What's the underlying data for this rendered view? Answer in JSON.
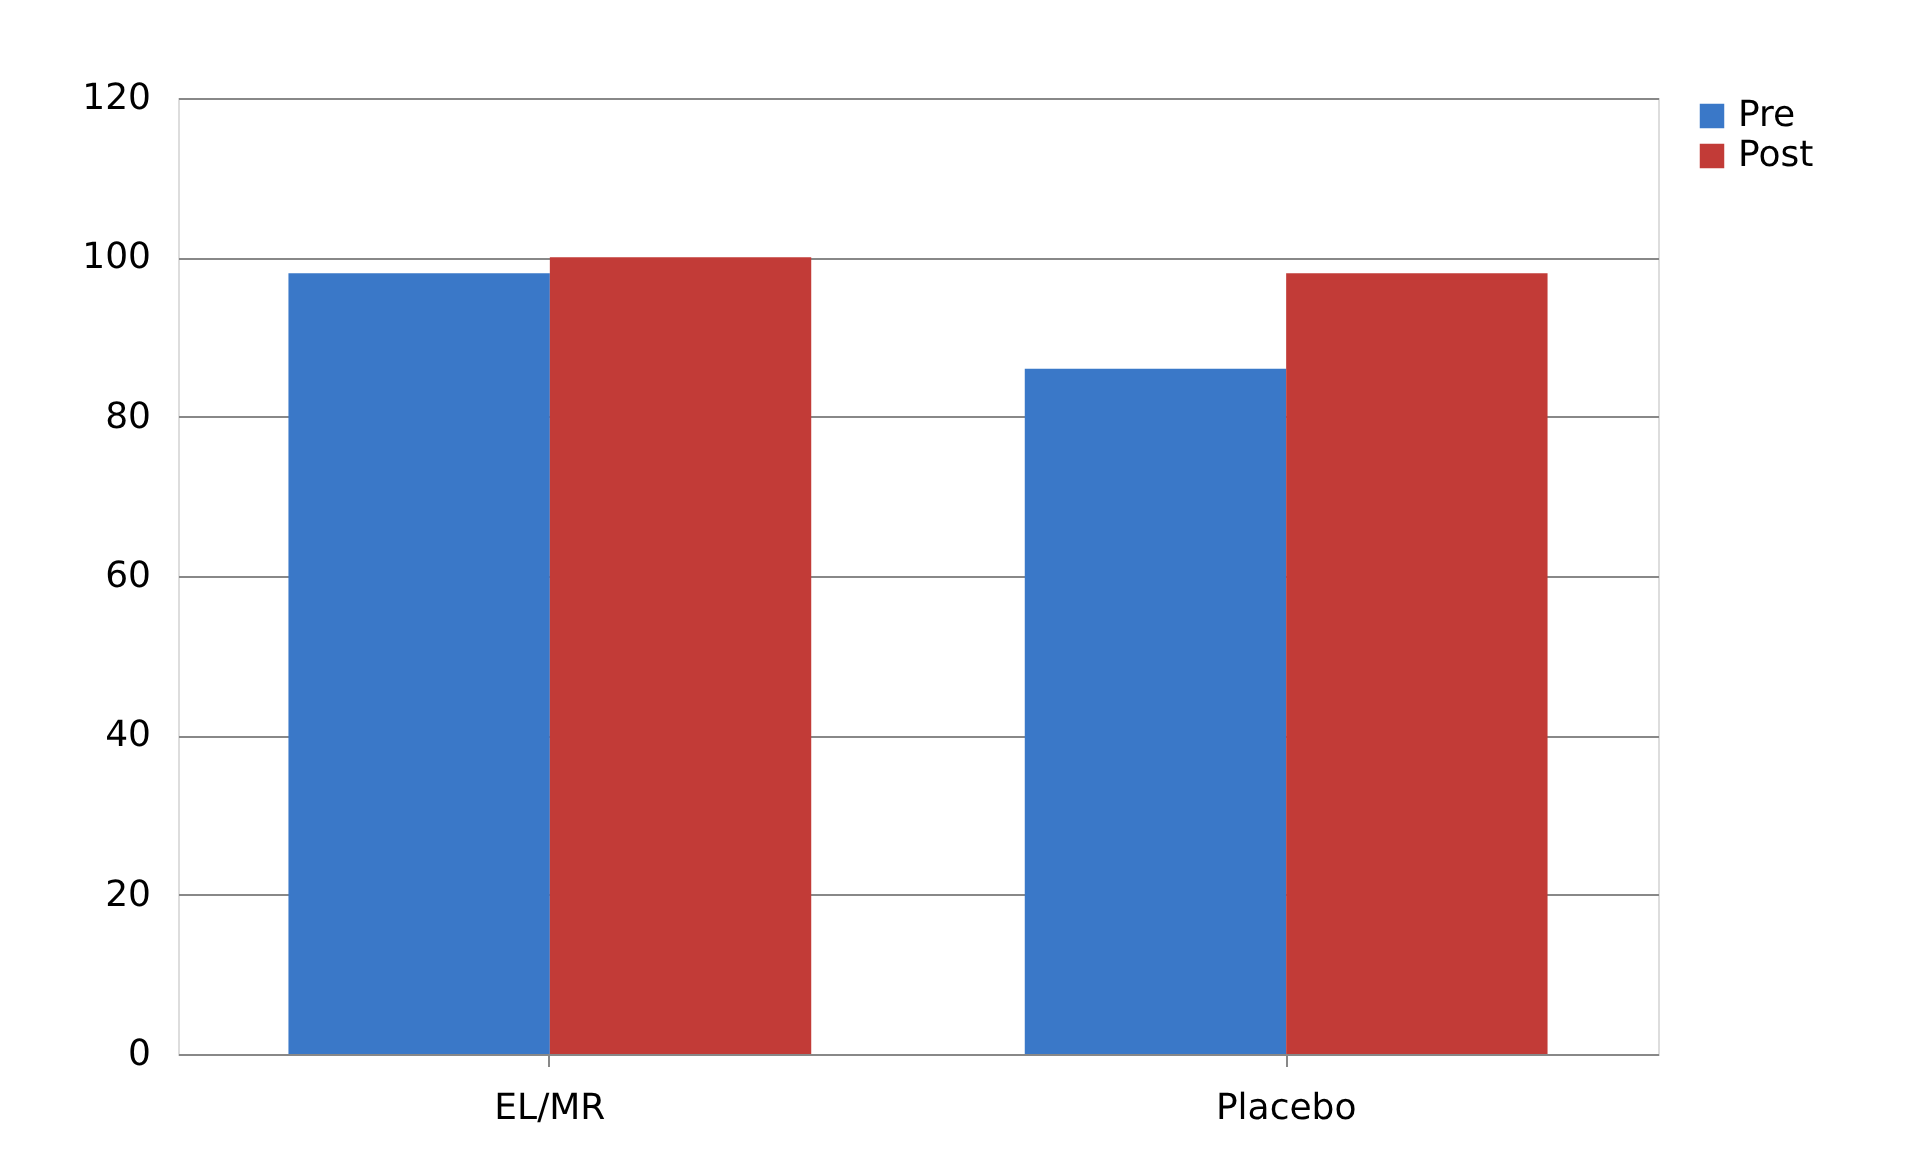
{
  "chart_data": {
    "type": "bar",
    "categories": [
      "EL/MR",
      "Placebo"
    ],
    "series": [
      {
        "name": "Pre",
        "color": "#3a78c8",
        "values": [
          98,
          86
        ]
      },
      {
        "name": "Post",
        "color": "#c23b37",
        "values": [
          100,
          98
        ]
      }
    ],
    "ylim": [
      0,
      120
    ],
    "yticks": [
      0,
      20,
      40,
      60,
      80,
      100,
      120
    ],
    "grid": "y",
    "legend": "right"
  }
}
